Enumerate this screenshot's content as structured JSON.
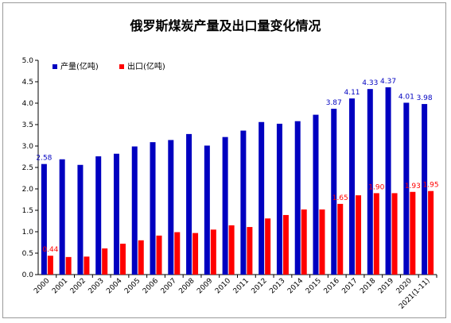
{
  "chart_data": {
    "type": "bar",
    "title": "俄罗斯煤炭产量及出口量变化情况",
    "categories": [
      "2000",
      "2001",
      "2002",
      "2003",
      "2004",
      "2005",
      "2006",
      "2007",
      "2008",
      "2009",
      "2010",
      "2011",
      "2012",
      "2013",
      "2014",
      "2015",
      "2016",
      "2017",
      "2018",
      "2019",
      "2020",
      "2021(1-11)"
    ],
    "series": [
      {
        "name": "产量(亿吨)",
        "color": "#0000c0",
        "values": [
          2.58,
          2.69,
          2.56,
          2.76,
          2.82,
          2.99,
          3.09,
          3.14,
          3.28,
          3.01,
          3.21,
          3.36,
          3.56,
          3.52,
          3.58,
          3.73,
          3.87,
          4.11,
          4.33,
          4.37,
          4.01,
          3.98
        ],
        "labels": {
          "0": "2.58",
          "16": "3.87",
          "17": "4.11",
          "18": "4.33",
          "19": "4.37",
          "20": "4.01",
          "21": "3.98"
        }
      },
      {
        "name": "出口(亿吨)",
        "color": "#ff0000",
        "values": [
          0.44,
          0.41,
          0.42,
          0.61,
          0.72,
          0.8,
          0.91,
          0.99,
          0.97,
          1.05,
          1.15,
          1.11,
          1.31,
          1.39,
          1.52,
          1.52,
          1.65,
          1.85,
          1.9,
          1.9,
          1.93,
          1.95
        ],
        "labels": {
          "0": "0.44",
          "16": "1.65",
          "18": "1.90",
          "20": "1.93",
          "21": "1.95"
        }
      }
    ],
    "ylim": [
      0,
      5.0
    ],
    "yticks": [
      "0.0",
      "0.5",
      "1.0",
      "1.5",
      "2.0",
      "2.5",
      "3.0",
      "3.5",
      "4.0",
      "4.5",
      "5.0"
    ],
    "grid": false,
    "legend_position": "top-left"
  }
}
